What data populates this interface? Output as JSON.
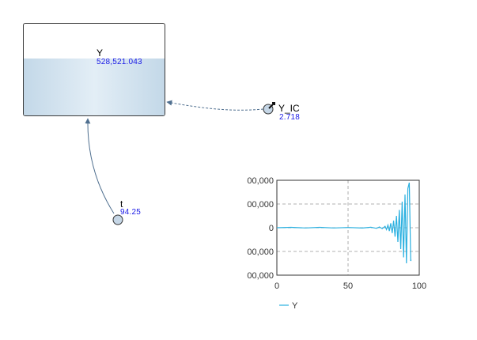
{
  "stock": {
    "name": "Y",
    "value": "528,521.043",
    "fill_fraction": 0.62
  },
  "converters": [
    {
      "id": "y_ic",
      "name": "Y_IC",
      "value": "2.718"
    },
    {
      "id": "t",
      "name": "t",
      "value": "94.25"
    }
  ],
  "colors": {
    "stock_fill": "#c9dcea",
    "link": "#4f6f8f",
    "value_text": "#1a1ae6",
    "series": "#2ab0e0"
  },
  "chart_data": {
    "type": "line",
    "xlim": [
      0,
      100
    ],
    "ylim": [
      -400000,
      400000
    ],
    "x_ticks": [
      "0",
      "50",
      "100"
    ],
    "y_ticks": [
      "00,000",
      "00,000",
      "0",
      "00,000",
      "00,000"
    ],
    "grid": true,
    "legend": "bottom-left",
    "series": [
      {
        "name": "Y",
        "x": [
          0,
          10,
          20,
          30,
          40,
          50,
          60,
          66,
          70,
          72,
          74,
          76,
          77,
          78,
          79,
          80,
          81,
          82,
          83,
          84,
          85,
          86,
          87,
          88,
          89,
          90,
          91,
          92,
          93,
          94,
          94.25
        ],
        "y": [
          0,
          3000,
          -2000,
          3000,
          -2000,
          2000,
          -3000,
          4000,
          -5000,
          6000,
          -8000,
          12000,
          -15000,
          22000,
          -28000,
          38000,
          -45000,
          60000,
          -75000,
          100000,
          -120000,
          150000,
          -180000,
          220000,
          -250000,
          280000,
          -300000,
          330000,
          380000,
          -280000,
          -270000
        ]
      }
    ]
  }
}
